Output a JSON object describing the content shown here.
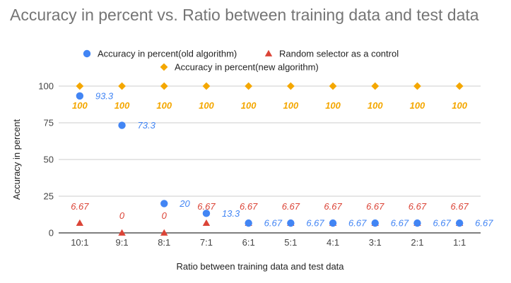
{
  "title": "Accuracy in percent vs. Ratio between training data and test data",
  "colors": {
    "old": "#4285f4",
    "random": "#db4437",
    "new": "#f4a700",
    "grid": "#cccccc",
    "axis": "#333333"
  },
  "chart_data": {
    "type": "scatter",
    "title": "Accuracy in percent vs. Ratio between training data and test data",
    "xlabel": "Ratio between training data and test data",
    "ylabel": "Accuracy in percent",
    "categories": [
      "10:1",
      "9:1",
      "8:1",
      "7:1",
      "6:1",
      "5:1",
      "4:1",
      "3:1",
      "2:1",
      "1:1"
    ],
    "ylim": [
      0,
      100
    ],
    "yticks": [
      0,
      25,
      50,
      75,
      100
    ],
    "grid": true,
    "legend_position": "top",
    "series": [
      {
        "name": "Accuracy in percent(old algorithm)",
        "marker": "circle",
        "color": "#4285f4",
        "values": [
          93.3,
          73.3,
          20,
          13.3,
          6.67,
          6.67,
          6.67,
          6.67,
          6.67,
          6.67
        ],
        "labels": [
          "93.3",
          "73.3",
          "20",
          "13.3",
          "6.67",
          "6.67",
          "6.67",
          "6.67",
          "6.67",
          "6.67"
        ]
      },
      {
        "name": "Random selector as a control",
        "marker": "triangle",
        "color": "#db4437",
        "values": [
          6.67,
          0,
          0,
          6.67,
          6.67,
          6.67,
          6.67,
          6.67,
          6.67,
          6.67
        ],
        "labels": [
          "6.67",
          "0",
          "0",
          "6.67",
          "6.67",
          "6.67",
          "6.67",
          "6.67",
          "6.67",
          "6.67"
        ]
      },
      {
        "name": "Accuracy in percent(new algorithm)",
        "marker": "diamond",
        "color": "#f4a700",
        "values": [
          100,
          100,
          100,
          100,
          100,
          100,
          100,
          100,
          100,
          100
        ],
        "labels": [
          "100",
          "100",
          "100",
          "100",
          "100",
          "100",
          "100",
          "100",
          "100",
          "100"
        ]
      }
    ]
  }
}
